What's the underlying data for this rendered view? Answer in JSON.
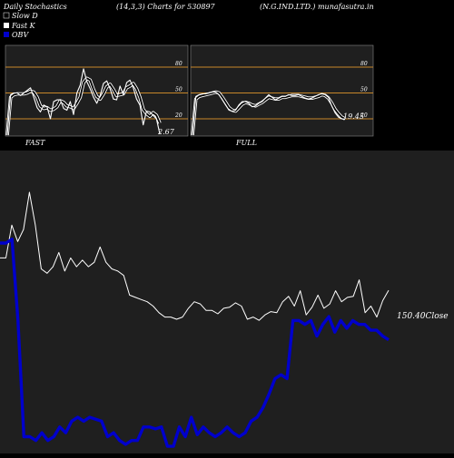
{
  "header": {
    "title_left": "Daily Stochastics",
    "params": "(14,3,3) Charts for 530897",
    "company": "(N.G.IND.LTD.) munafasutra.in"
  },
  "legend": [
    {
      "label": "Slow  D",
      "color": "#000000"
    },
    {
      "label": "Fast K",
      "color": "#ffffff"
    },
    {
      "label": "OBV",
      "color": "#0000cc"
    }
  ],
  "colors": {
    "background": "#000000",
    "panel": "#1f1f1f",
    "level_line": "#c8872a",
    "price_line": "#ffffff",
    "obv_line": "#0000cc"
  },
  "chart_data": [
    {
      "type": "line",
      "panel": "FAST",
      "ylim": [
        0,
        100
      ],
      "levels": [
        20,
        50,
        80
      ],
      "level_labels": [
        "80",
        "50",
        "20"
      ],
      "last_value_label": "2.67",
      "series": [
        {
          "name": "Fast K",
          "values": [
            -5,
            48,
            50,
            50,
            47,
            50,
            53,
            56,
            45,
            33,
            28,
            36,
            34,
            20,
            40,
            42,
            42,
            32,
            30,
            40,
            25,
            50,
            59,
            78,
            63,
            55,
            45,
            38,
            47,
            61,
            64,
            55,
            43,
            42,
            58,
            48,
            62,
            65,
            56,
            43,
            36,
            13,
            29,
            28,
            24,
            20,
            2.67
          ]
        },
        {
          "name": "Slow  D",
          "values": [
            -5,
            45,
            48,
            49,
            49,
            49,
            50,
            52,
            51,
            45,
            35,
            32,
            33,
            30,
            31,
            34,
            41,
            39,
            35,
            34,
            32,
            38,
            45,
            62,
            67,
            65,
            54,
            46,
            43,
            49,
            57,
            60,
            54,
            47,
            48,
            49,
            56,
            58,
            61,
            55,
            45,
            31,
            26,
            23,
            27,
            24,
            15
          ]
        }
      ]
    },
    {
      "type": "line",
      "panel": "FULL",
      "ylim": [
        0,
        100
      ],
      "levels": [
        20,
        50,
        80
      ],
      "level_labels": [
        "80",
        "50",
        "20"
      ],
      "last_value_label": "19.45",
      "series": [
        {
          "name": "Fast K",
          "values": [
            -5,
            46,
            48,
            49,
            49,
            50,
            51,
            51,
            48,
            42,
            36,
            30,
            29,
            30,
            36,
            40,
            40,
            38,
            34,
            35,
            38,
            40,
            44,
            48,
            45,
            42,
            44,
            46,
            46,
            48,
            47,
            47,
            48,
            46,
            44,
            43,
            44,
            46,
            48,
            49,
            48,
            45,
            35,
            27,
            22,
            20,
            19.45
          ]
        },
        {
          "name": "Slow  D",
          "values": [
            -5,
            43,
            46,
            47,
            48,
            49,
            50,
            51,
            50,
            45,
            39,
            33,
            30,
            29,
            33,
            37,
            39,
            38,
            36,
            35,
            37,
            39,
            42,
            45,
            44,
            43,
            43,
            45,
            45,
            46,
            47,
            47,
            47,
            46,
            45,
            44,
            44,
            45,
            46,
            48,
            47,
            44,
            38,
            31,
            26,
            22,
            20
          ]
        }
      ]
    },
    {
      "type": "line",
      "panel": "PRICE_OBV",
      "last_close_label": "150.40Close",
      "series": [
        {
          "name": "Close",
          "values": [
            180,
            180,
            210,
            195,
            206,
            240,
            210,
            170,
            166,
            172,
            185,
            168,
            180,
            172,
            178,
            172,
            176,
            190,
            176,
            170,
            168,
            164,
            146,
            144,
            142,
            140,
            136,
            130,
            126,
            126,
            124,
            126,
            134,
            140,
            138,
            132,
            132,
            129,
            134,
            135,
            139,
            136,
            124,
            126,
            123,
            128,
            131,
            130,
            140,
            145,
            136,
            150,
            128,
            135,
            146,
            134,
            138,
            150,
            140,
            144,
            145,
            160,
            130,
            136,
            126,
            141,
            150.4
          ]
        },
        {
          "name": "OBV",
          "values": [
            140,
            140,
            142,
            100,
            40,
            40,
            38,
            42,
            38,
            40,
            45,
            42,
            48,
            50,
            48,
            50,
            49,
            48,
            40,
            42,
            38,
            36,
            38,
            38,
            45,
            45,
            44,
            45,
            35,
            35,
            45,
            40,
            50,
            41,
            45,
            42,
            40,
            42,
            45,
            42,
            40,
            42,
            48,
            50,
            55,
            62,
            70,
            72,
            70,
            100,
            100,
            98,
            100,
            92,
            98,
            102,
            94,
            100,
            96,
            100,
            98,
            98,
            95,
            95,
            92,
            90
          ]
        }
      ]
    }
  ],
  "panels": {
    "fast_label": "FAST",
    "full_label": "FULL"
  }
}
